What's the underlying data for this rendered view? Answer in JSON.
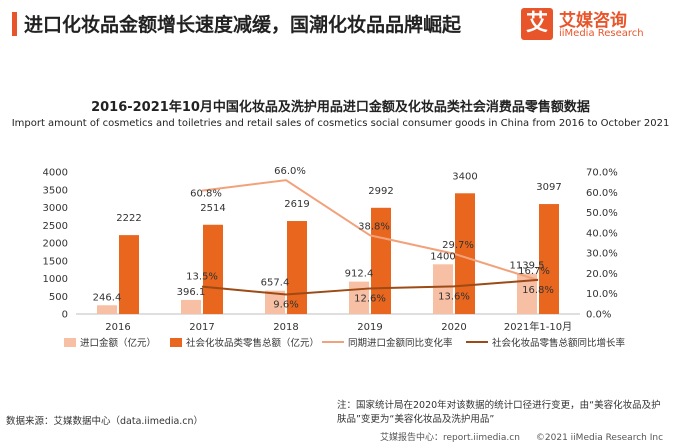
{
  "header": {
    "title": "进口化妆品金额增长速度减缓，国潮化妆品品牌崛起"
  },
  "logo": {
    "mark": "艾",
    "name_cn": "艾媒咨询",
    "name_en": "iiMedia Research"
  },
  "colors": {
    "accent": "#e8552a",
    "bar_import": "#f7c0a5",
    "bar_retail": "#e8661d",
    "line_import_rate": "#f2a27b",
    "line_retail_rate": "#9c4a16"
  },
  "chart_data": {
    "type": "bar",
    "title": "2016-2021年10月中国化妆品及洗护用品进口金额及化妆品类社会消费品零售额数据",
    "subtitle": "Import amount of cosmetics and toiletries and retail sales of cosmetics social consumer goods in China from 2016 to October 2021",
    "categories": [
      "2016",
      "2017",
      "2018",
      "2019",
      "2020",
      "2021年1-10月"
    ],
    "left_axis": {
      "min": 0,
      "max": 4000,
      "ticks": [
        "0",
        "500",
        "1000",
        "1500",
        "2000",
        "2500",
        "3000",
        "3500",
        "4000"
      ]
    },
    "right_axis": {
      "min": 0,
      "max": 70,
      "ticks": [
        "0.0%",
        "10.0%",
        "20.0%",
        "30.0%",
        "40.0%",
        "50.0%",
        "60.0%",
        "70.0%"
      ]
    },
    "series": [
      {
        "name": "进口金额（亿元）",
        "type": "bar",
        "axis": "left",
        "values": [
          246.4,
          396.1,
          657.4,
          912.4,
          1400,
          1139.5
        ],
        "labels": [
          "246.4",
          "396.1",
          "657.4",
          "912.4",
          "1400",
          "1139.5"
        ]
      },
      {
        "name": "社会化妆品类零售总额（亿元）",
        "type": "bar",
        "axis": "left",
        "values": [
          2222,
          2514,
          2619,
          2992,
          3400,
          3097
        ],
        "labels": [
          "2222",
          "2514",
          "2619",
          "2992",
          "3400",
          "3097"
        ]
      },
      {
        "name": "同期进口金额同比变化率",
        "type": "line",
        "axis": "right",
        "values": [
          null,
          60.8,
          66.0,
          38.8,
          29.7,
          16.7
        ],
        "labels": [
          "",
          "60.8%",
          "66.0%",
          "38.8%",
          "29.7%",
          "16.7%"
        ]
      },
      {
        "name": "社会化妆品零售总额同比增长率",
        "type": "line",
        "axis": "right",
        "values": [
          null,
          13.5,
          9.6,
          12.6,
          13.6,
          16.8
        ],
        "labels": [
          "",
          "13.5%",
          "9.6%",
          "12.6%",
          "13.6%",
          "16.8%"
        ]
      }
    ],
    "legend_position": "bottom",
    "grid": false
  },
  "legend": [
    {
      "label": "进口金额（亿元）"
    },
    {
      "label": "社会化妆品类零售总额（亿元）"
    },
    {
      "label": "同期进口金额同比变化率"
    },
    {
      "label": "社会化妆品零售总额同比增长率"
    }
  ],
  "note": "注：国家统计局在2020年对该数据的统计口径进行变更，由“美容化妆品及护肤品”变更为“美容化妆品及洗护用品”",
  "source": "数据来源：艾媒数据中心（data.iimedia.cn）",
  "footer": {
    "report": "艾媒报告中心：report.iimedia.cn",
    "copyright": "©2021  iiMedia Research  Inc"
  }
}
